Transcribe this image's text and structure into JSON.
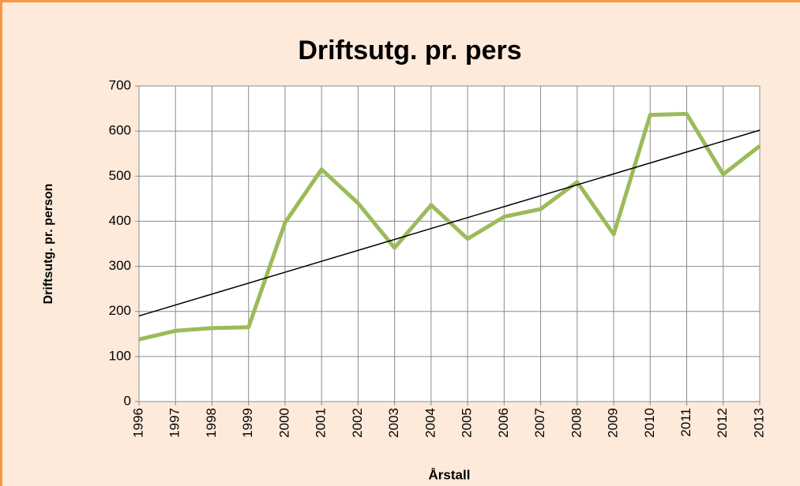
{
  "chart_data": {
    "type": "line",
    "title": "Driftsutg. pr. pers",
    "x_label": "Årstall",
    "y_label": "Driftsutg. pr. person",
    "categories": [
      "1996",
      "1997",
      "1998",
      "1999",
      "2000",
      "2001",
      "2002",
      "2003",
      "2004",
      "2005",
      "2006",
      "2007",
      "2008",
      "2009",
      "2010",
      "2011",
      "2012",
      "2013"
    ],
    "series": [
      {
        "color": "#9bbb59",
        "values": [
          138,
          157,
          163,
          165,
          397,
          515,
          440,
          341,
          436,
          361,
          410,
          427,
          487,
          371,
          636,
          638,
          504,
          567
        ]
      }
    ],
    "trendline": {
      "color": "#000000",
      "values": [
        190,
        602
      ]
    },
    "ylim": [
      0,
      700
    ],
    "yticks": [
      0,
      100,
      200,
      300,
      400,
      500,
      600,
      700
    ],
    "grid": true
  }
}
